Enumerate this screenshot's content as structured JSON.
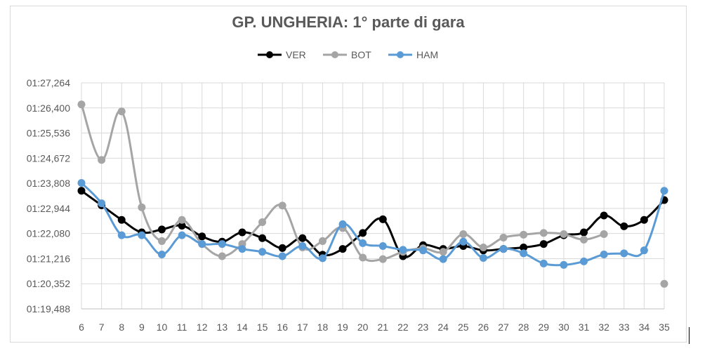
{
  "chart_data": {
    "type": "line",
    "title": "GP. UNGHERIA: 1° parte di gara",
    "xlabel": "",
    "ylabel": "",
    "x": [
      6,
      7,
      8,
      9,
      10,
      11,
      12,
      13,
      14,
      15,
      16,
      17,
      18,
      19,
      20,
      21,
      22,
      23,
      24,
      25,
      26,
      27,
      28,
      29,
      30,
      31,
      32,
      33,
      34,
      35
    ],
    "y_ticks_seconds": [
      79.488,
      80.352,
      81.216,
      82.08,
      82.944,
      83.808,
      84.672,
      85.536,
      86.4,
      87.264
    ],
    "y_tick_labels": [
      "01:19,488",
      "01:20,352",
      "01:21,216",
      "01:22,080",
      "01:22,944",
      "01:23,808",
      "01:24,672",
      "01:25,536",
      "01:26,400",
      "01:27,264"
    ],
    "ylim_seconds": [
      79.488,
      87.264
    ],
    "grid": true,
    "legend_position": "top",
    "series": [
      {
        "name": "VER",
        "color": "#000000",
        "values_seconds": [
          83.55,
          83.05,
          82.55,
          82.12,
          82.22,
          82.35,
          81.98,
          81.8,
          82.12,
          81.92,
          81.58,
          81.92,
          81.35,
          81.55,
          82.1,
          82.57,
          81.3,
          81.68,
          81.55,
          81.65,
          81.5,
          81.55,
          81.6,
          81.72,
          82.02,
          82.12,
          82.7,
          82.33,
          82.55,
          83.23
        ]
      },
      {
        "name": "BOT",
        "color": "#a5a5a5",
        "values_seconds": [
          86.52,
          84.61,
          86.28,
          82.98,
          81.82,
          82.55,
          81.72,
          81.3,
          81.72,
          82.47,
          83.04,
          81.6,
          81.82,
          82.27,
          81.25,
          81.2,
          81.45,
          81.57,
          81.45,
          82.06,
          81.6,
          81.94,
          82.04,
          82.1,
          82.06,
          81.87,
          82.06,
          null,
          null,
          80.35
        ]
      },
      {
        "name": "HAM",
        "color": "#5b9bd5",
        "values_seconds": [
          83.82,
          83.12,
          82.02,
          82.02,
          81.36,
          82.02,
          81.72,
          81.72,
          81.55,
          81.45,
          81.3,
          81.65,
          81.23,
          82.4,
          81.75,
          81.65,
          81.52,
          81.5,
          81.2,
          81.8,
          81.24,
          81.55,
          81.4,
          81.05,
          81.0,
          81.12,
          81.36,
          81.4,
          81.5,
          83.55
        ]
      }
    ]
  }
}
